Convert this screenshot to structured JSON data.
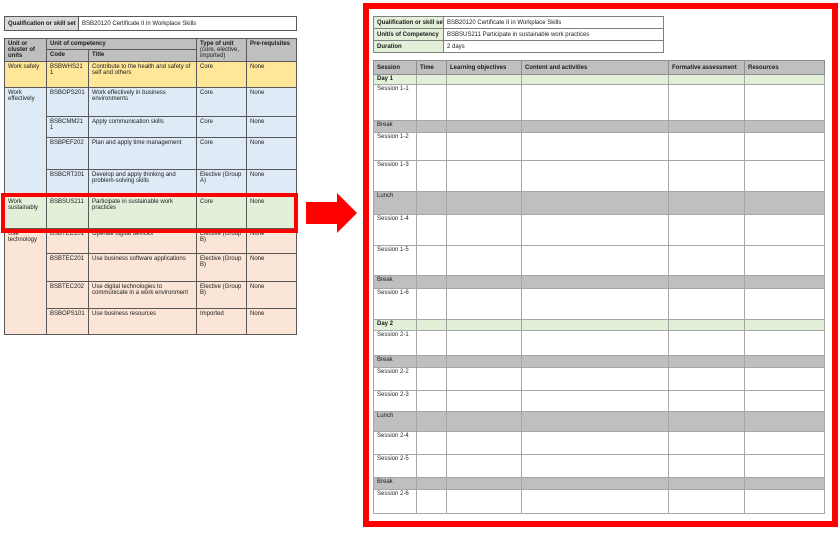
{
  "colors": {
    "highlight_red": "#FF0000",
    "left_group_yellow": "#FFE699",
    "left_group_blue": "#DEEBF7",
    "left_group_green": "#E2EFD9",
    "left_group_pink": "#FBE5D6",
    "label_gray": "#D9D9D9",
    "header_gray": "#BFBFBF",
    "day_green": "#E2EFD9",
    "break_gray": "#BFBFBF"
  },
  "left_table": {
    "qualification_label": "Qualification or skill set",
    "qualification_value": "BSB20120 Certificate II in Workplace Skills",
    "headers": {
      "unit_cluster": "Unit or cluster of units",
      "unit_of_competency": "Unit of competency",
      "code": "Code",
      "title": "Title",
      "type_of_unit": "Type of unit",
      "type_of_unit_sub": "(core, elective, imported)",
      "prerequisites": "Pre-requisites"
    },
    "groups": [
      {
        "cluster": "Work safely",
        "rows": [
          {
            "code": "BSBWHS211",
            "title": "Contribute to the health and safety of self and others",
            "type": "Core",
            "prereq": "None"
          }
        ]
      },
      {
        "cluster": "Work effectively",
        "rows": [
          {
            "code": "BSBOPS201",
            "title": "Work effectively in business environments",
            "type": "Core",
            "prereq": "None"
          },
          {
            "code": "BSBCMM211",
            "title": "Apply communication skills",
            "type": "Core",
            "prereq": "None"
          },
          {
            "code": "BSBPEF202",
            "title": "Plan and apply time management",
            "type": "Core",
            "prereq": "None"
          },
          {
            "code": "BSBCRT201",
            "title": "Develop and apply thinking and problem-solving skills",
            "type": "Elective (Group A)",
            "prereq": "None"
          }
        ]
      },
      {
        "cluster": "Work sustainably",
        "highlighted": true,
        "rows": [
          {
            "code": "BSBSUS211",
            "title": "Participate in sustainable work practices",
            "type": "Core",
            "prereq": "None"
          }
        ]
      },
      {
        "cluster": "Use technology",
        "rows": [
          {
            "code": "BSBTEC101",
            "title": "Operate digital devices",
            "type": "Elective (Group B)",
            "prereq": "None"
          },
          {
            "code": "BSBTEC201",
            "title": "Use business software applications",
            "type": "Elective (Group B)",
            "prereq": "None"
          },
          {
            "code": "BSBTEC202",
            "title": "Use digital technologies to communicate in a work environment",
            "type": "Elective (Group B)",
            "prereq": "None"
          },
          {
            "code": "BSBOPS101",
            "title": "Use business resources",
            "type": "Imported",
            "prereq": "None"
          }
        ]
      }
    ]
  },
  "right_table": {
    "info": [
      {
        "label": "Qualification or skill set",
        "value": "BSB20120 Certificate II in Workplace Skills"
      },
      {
        "label": "Unit/s of Competency",
        "value": "BSBSUS211 Participate in sustainable work practices"
      },
      {
        "label": "Duration",
        "value": "2 days"
      }
    ],
    "columns": [
      "Session",
      "Time",
      "Learning objectives",
      "Content and activities",
      "Formative assessment",
      "Resources"
    ],
    "rows": [
      {
        "label": "Day 1",
        "kind": "day"
      },
      {
        "label": "Session 1-1",
        "kind": "session"
      },
      {
        "label": "Break",
        "kind": "break"
      },
      {
        "label": "Session 1-2",
        "kind": "session"
      },
      {
        "label": "Session 1-3",
        "kind": "session"
      },
      {
        "label": "Lunch",
        "kind": "lunch"
      },
      {
        "label": "Session 1-4",
        "kind": "session"
      },
      {
        "label": "Session 1-5",
        "kind": "session"
      },
      {
        "label": "Break",
        "kind": "break"
      },
      {
        "label": "Session 1-6",
        "kind": "session"
      },
      {
        "label": "Day 2",
        "kind": "day"
      },
      {
        "label": "Session 2-1",
        "kind": "session"
      },
      {
        "label": "Break",
        "kind": "break"
      },
      {
        "label": "Session 2-2",
        "kind": "session"
      },
      {
        "label": "Session 2-3",
        "kind": "session"
      },
      {
        "label": "Lunch",
        "kind": "lunch"
      },
      {
        "label": "Session 2-4",
        "kind": "session"
      },
      {
        "label": "Session 2-5",
        "kind": "session"
      },
      {
        "label": "Break",
        "kind": "break"
      },
      {
        "label": "Session 2-6",
        "kind": "session"
      }
    ]
  }
}
